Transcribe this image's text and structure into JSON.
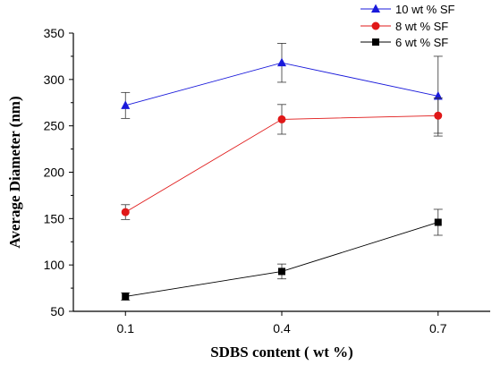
{
  "chart_data": {
    "type": "line",
    "xlabel": "SDBS content ( wt %)",
    "ylabel": "Average Diameter (nm)",
    "x": [
      0.1,
      0.4,
      0.7
    ],
    "x_tick_labels": [
      "0.1",
      "0.4",
      "0.7"
    ],
    "xlim": [
      0.0,
      0.8
    ],
    "ylim": [
      50,
      350
    ],
    "y_ticks": [
      50,
      100,
      150,
      200,
      250,
      300,
      350
    ],
    "grid": false,
    "legend_position": "top-right",
    "series": [
      {
        "name": "10 wt % SF",
        "color": "#1a1adb",
        "marker": "triangle",
        "values": [
          272,
          318,
          282
        ],
        "error": [
          14,
          21,
          43
        ]
      },
      {
        "name": "8   wt % SF",
        "color": "#e01818",
        "marker": "circle",
        "values": [
          157,
          257,
          261
        ],
        "error": [
          8,
          16,
          19
        ]
      },
      {
        "name": "6   wt % SF",
        "color": "#000000",
        "marker": "square",
        "values": [
          66,
          93,
          146
        ],
        "error": [
          4,
          8,
          14
        ]
      }
    ]
  }
}
